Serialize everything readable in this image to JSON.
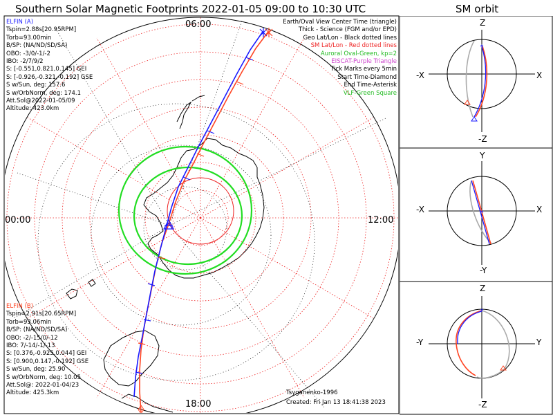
{
  "header": {
    "main_title": "Southern Solar Magnetic Footprints 2022-01-05 09:00 to 10:30 UTC",
    "orbit_title": "SM orbit"
  },
  "colors": {
    "elfin_a": "#1a1aff",
    "elfin_b": "#ff4422",
    "auroral_oval": "#22dd22",
    "sm_grid": "#ee2222",
    "geo_grid": "#000000",
    "eiscat": "#cc44cc"
  },
  "map": {
    "time_labels": {
      "top": "06:00",
      "left": "00:00",
      "right": "12:00",
      "bottom": "18:00"
    }
  },
  "elfin_a": {
    "name": "ELFIN (A)",
    "lines": [
      "Tspin=2.88s[20.95RPM]",
      "Torb=93.00min",
      "B/SP: (NA/ND/SD/SA)",
      "OBO: -3/0/-1/-2",
      "IBO: -2/7/9/2",
      "S: [-0.551,0.821,0.145] GEI",
      "S: [-0.926,-0.321,-0.192] GSE",
      "S w/Sun, deg: 157.6",
      "S w/OrbNorm, deg: 174.1",
      "Att.Sol@2022-01-05/09",
      "Altitude: 423.0km"
    ]
  },
  "elfin_b": {
    "name": "ELFIN (B)",
    "lines": [
      "Tspin=2.91s[20.65RPM]",
      "Torb=93.06min",
      "B/SP: (NA/ND/SD/SA)",
      "OBO: -2/-15/0/-12",
      "IBO: 7/-14/-1/-13",
      "S: [0.376,-0.925,0.044] GEI",
      "S: [0.900,0.147,-0.192] GSE",
      "S w/Sun, deg: 25.90",
      "S w/OrbNorm, deg: 10.05",
      "Att.Sol@: 2022-01-04/23",
      "Altitude: 425.3km"
    ]
  },
  "legend": {
    "lines": [
      {
        "text": "Earth/Oval View Center Time (triangle)",
        "color": "#000000"
      },
      {
        "text": "Thick - Science (FGM and/or EPD)",
        "color": "#000000"
      },
      {
        "text": "Geo Lat/Lon - Black dotted lines",
        "color": "#000000"
      },
      {
        "text": "SM Lat/Lon - Red dotted lines",
        "color": "#ee2222"
      },
      {
        "text": "Auroral Oval-Green, kp=2",
        "color": "#22bb22"
      },
      {
        "text": "EISCAT-Purple Triangle",
        "color": "#cc44cc"
      },
      {
        "text": "Tick Marks every 5min",
        "color": "#000000"
      },
      {
        "text": "Start Time-Diamond",
        "color": "#000000"
      },
      {
        "text": "End Time-Asterisk",
        "color": "#000000"
      },
      {
        "text": "VLF-Green Square",
        "color": "#22bb22"
      }
    ]
  },
  "credits": {
    "author": "Tsyganenko-1996",
    "created": "Created: Fri Jan 13 18:41:38 2023"
  },
  "orbit_panels": [
    {
      "top": "Z",
      "bottom": "-Z",
      "left": "-X",
      "right": "X"
    },
    {
      "top": "Y",
      "bottom": "-Y",
      "left": "-X",
      "right": "X"
    },
    {
      "top": "Z",
      "bottom": "-Z",
      "left": "-Y",
      "right": "Y"
    }
  ]
}
